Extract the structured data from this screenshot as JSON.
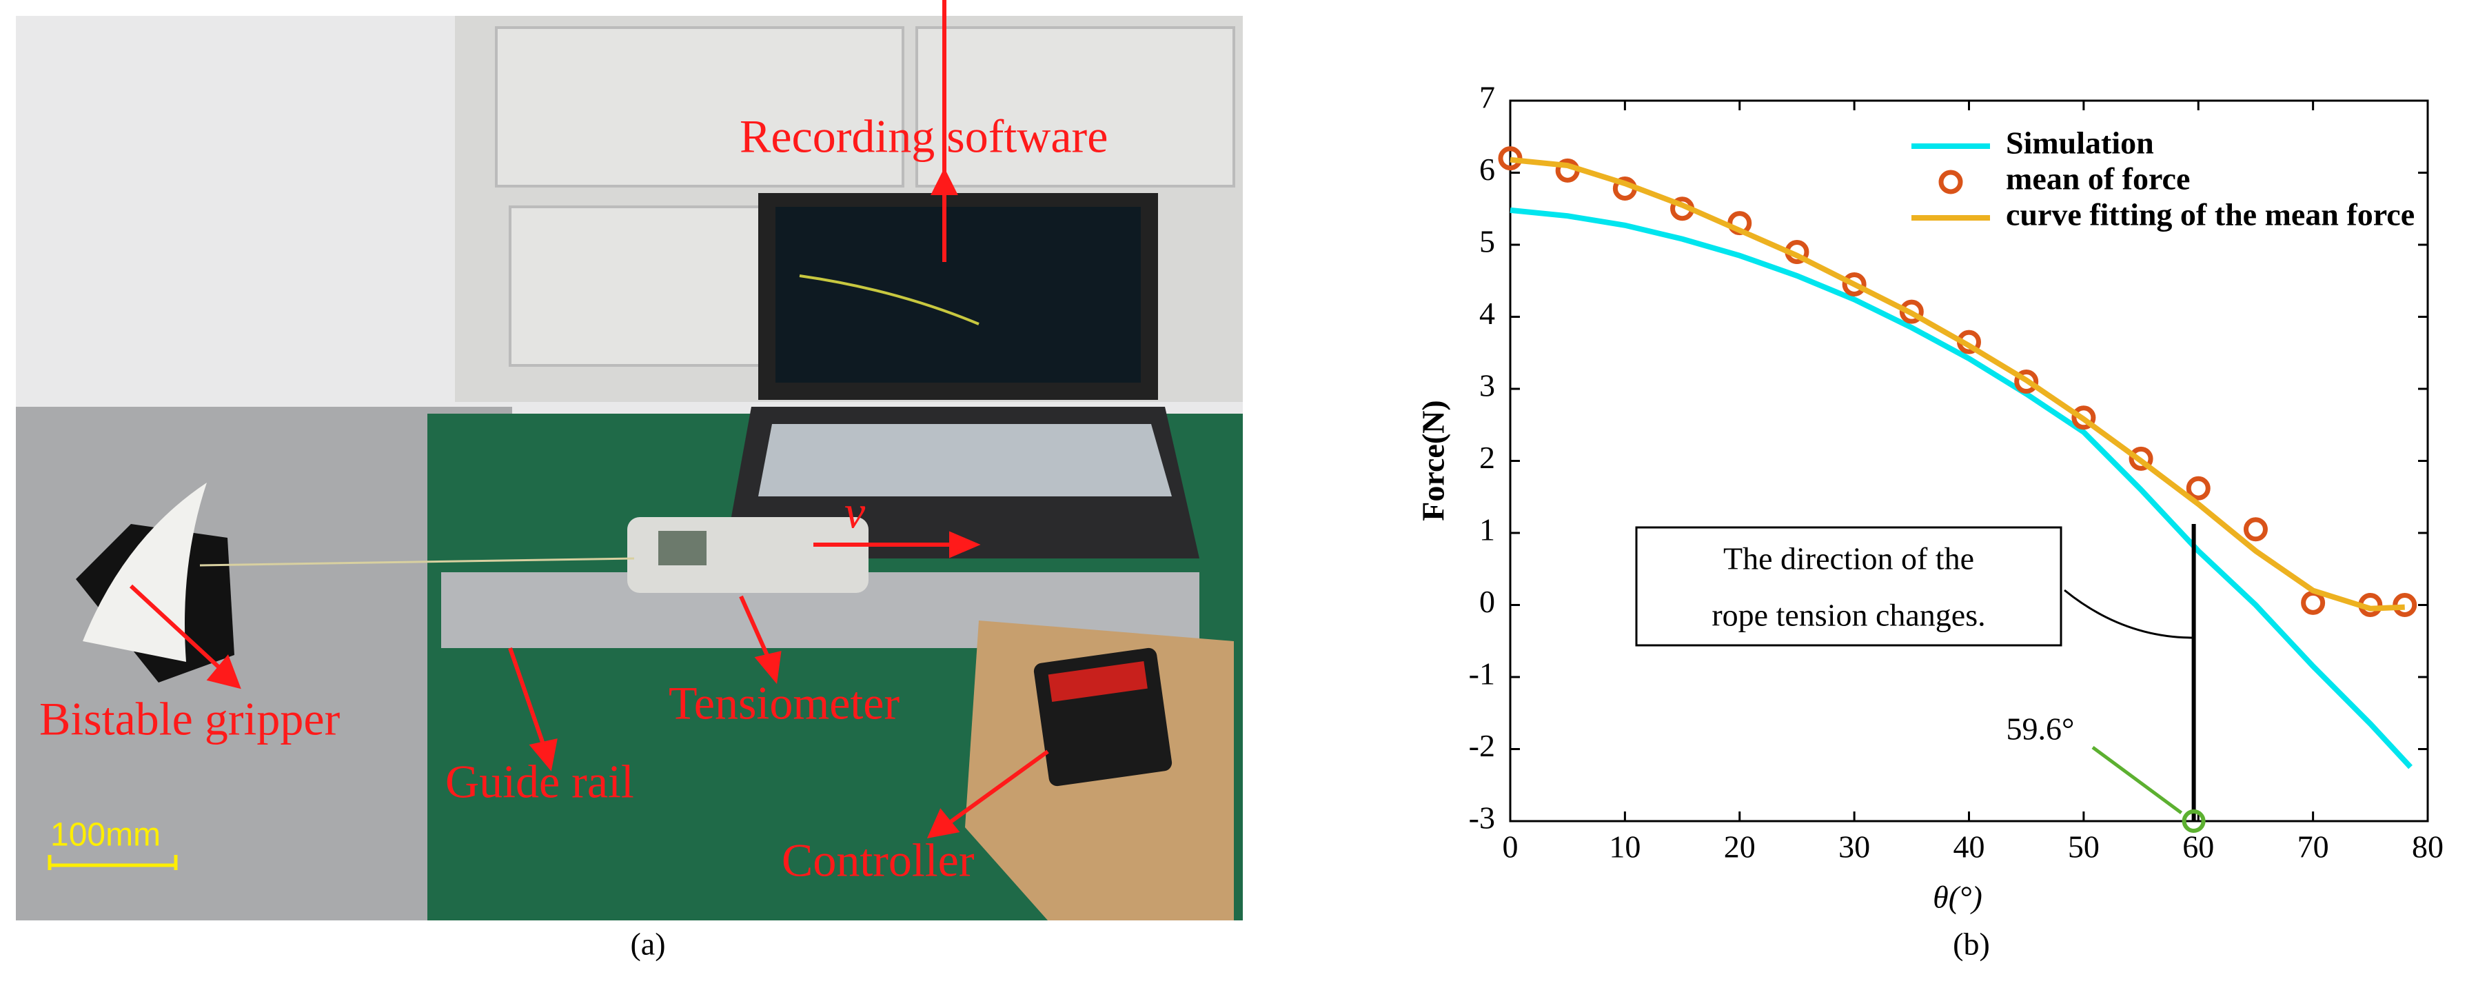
{
  "photo": {
    "labels": {
      "software": "Recording software",
      "velocity": "v",
      "gripper": "Bistable gripper",
      "tensiometer": "Tensiometer",
      "rail": "Guide rail",
      "controller": "Controller",
      "scale": "100mm"
    },
    "caption": "(a)"
  },
  "chart_data": {
    "type": "line",
    "caption": "(b)",
    "xlabel": "θ(°)",
    "ylabel": "Force(N)",
    "xlim": [
      0,
      80
    ],
    "xticks": [
      0,
      10,
      20,
      30,
      40,
      50,
      60,
      70,
      80
    ],
    "ylim": [
      -3,
      7
    ],
    "yticks": [
      -3,
      -2,
      -1,
      0,
      1,
      2,
      3,
      4,
      5,
      6,
      7
    ],
    "legend": "top-right",
    "series": [
      {
        "name": "Simulation",
        "color": "#00e5ee",
        "style": "line",
        "x": [
          0,
          5,
          10,
          15,
          20,
          25,
          30,
          35,
          40,
          45,
          50,
          55,
          60,
          65,
          70,
          75,
          78.5
        ],
        "values": [
          5.48,
          5.4,
          5.27,
          5.08,
          4.85,
          4.57,
          4.24,
          3.85,
          3.42,
          2.93,
          2.4,
          1.6,
          0.75,
          0.0,
          -0.85,
          -1.65,
          -2.25
        ]
      },
      {
        "name": "mean of force",
        "color": "#d95319",
        "style": "marker",
        "x": [
          0,
          5,
          10,
          15,
          20,
          25,
          30,
          35,
          40,
          45,
          50,
          55,
          60,
          65,
          70,
          75,
          78
        ],
        "values": [
          6.2,
          6.03,
          5.78,
          5.5,
          5.3,
          4.9,
          4.45,
          4.07,
          3.65,
          3.1,
          2.6,
          2.03,
          1.62,
          1.05,
          0.03,
          0.0,
          0.0
        ]
      },
      {
        "name": "curve fitting of the mean force",
        "color": "#edb120",
        "style": "line",
        "x": [
          0,
          5,
          10,
          15,
          20,
          25,
          30,
          35,
          40,
          45,
          50,
          55,
          60,
          65,
          70,
          75,
          78
        ],
        "values": [
          6.18,
          6.1,
          5.85,
          5.55,
          5.2,
          4.85,
          4.45,
          4.05,
          3.6,
          3.12,
          2.58,
          2.0,
          1.4,
          0.75,
          0.2,
          -0.05,
          -0.03
        ]
      }
    ],
    "annotations": {
      "box": [
        "The direction of the",
        "rope tension changes."
      ],
      "angle": {
        "x": 59.6,
        "label": "59.6°"
      }
    }
  }
}
